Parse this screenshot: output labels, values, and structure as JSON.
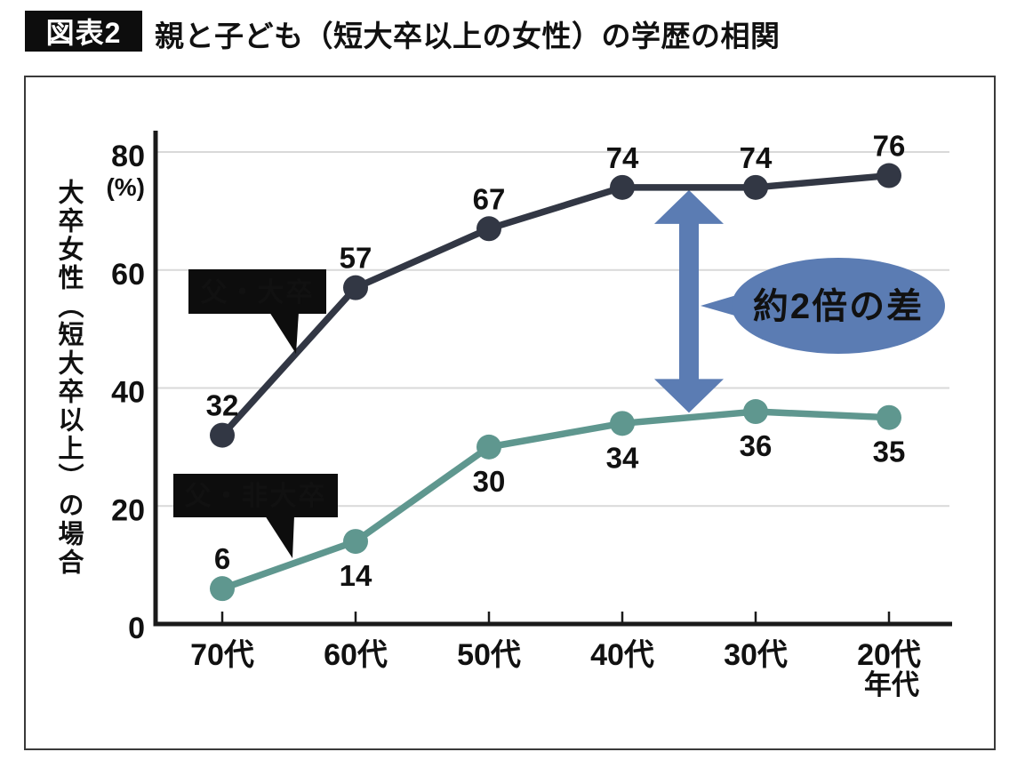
{
  "header": {
    "badge": "図表2",
    "title": "親と子ども（短大卒以上の女性）の学歴の相関"
  },
  "chart_data": {
    "type": "line",
    "title": "親と子ども（短大卒以上の女性）の学歴の相関",
    "categories": [
      "70代",
      "60代",
      "50代",
      "40代",
      "30代",
      "20代"
    ],
    "x_axis_label": "年代",
    "y_axis_label": "大卒女性（短大卒以上）の場合",
    "y_unit_label": "(%)",
    "ylim": [
      0,
      80
    ],
    "yticks": [
      0,
      20,
      40,
      60,
      80
    ],
    "grid": "horizontal",
    "axis_color": "#1a1a1a",
    "grid_color": "#d9d9d9",
    "series": [
      {
        "name": "父・大卒",
        "color": "#323744",
        "values": [
          32,
          57,
          67,
          74,
          74,
          76
        ],
        "value_label_positions": [
          "above",
          "above",
          "above",
          "above",
          "above",
          "above"
        ],
        "callout_bg": "#0d0d0d",
        "callout_fg": "#ffffff"
      },
      {
        "name": "父・非大卒",
        "color": "#5f978f",
        "values": [
          6,
          14,
          30,
          34,
          36,
          35
        ],
        "value_label_positions": [
          "above",
          "below",
          "below",
          "below",
          "below",
          "below"
        ],
        "callout_bg": "#0d0d0d",
        "callout_fg": "#ffffff"
      }
    ],
    "annotation": {
      "arrow_color": "#5b7cb3",
      "arrow_between_categories": [
        "40代",
        "30代"
      ],
      "bubble_text": "約2倍の差",
      "bubble_color": "#5b7cb3",
      "bubble_text_color": "#ffffff"
    }
  }
}
